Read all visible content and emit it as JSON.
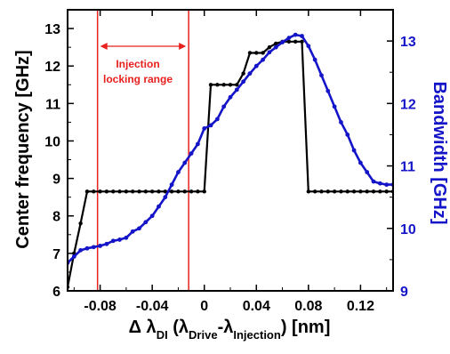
{
  "chart_data": {
    "type": "line",
    "grid": false,
    "legend": "none",
    "xlabel": {
      "prefix": "Δ λ",
      "prefix_sub": "DI",
      "mid1": " (λ",
      "sub1": "Drive",
      "mid2": "-λ",
      "sub2": "Injection",
      "suffix": ") [nm]"
    },
    "ylabel_left": "Center frequency [GHz]",
    "ylabel_right": "Bandwidth [GHz]",
    "xlim": [
      -0.105,
      0.145
    ],
    "ylim_left": [
      6,
      13.5
    ],
    "ylim_right": [
      9,
      13.5
    ],
    "x_ticks": [
      -0.08,
      -0.04,
      0,
      0.04,
      0.08,
      0.12
    ],
    "x_tick_labels": [
      "-0.08",
      "-0.04",
      "0",
      "0.04",
      "0.08",
      "0.12"
    ],
    "y_left_ticks": [
      6,
      7,
      8,
      9,
      10,
      11,
      12,
      13
    ],
    "y_left_tick_labels": [
      "6",
      "7",
      "8",
      "9",
      "10",
      "11",
      "12",
      "13"
    ],
    "y_right_ticks": [
      9,
      10,
      11,
      12,
      13
    ],
    "y_right_tick_labels": [
      "9",
      "10",
      "11",
      "12",
      "13"
    ],
    "colors": {
      "left_series": "#000000",
      "right_series": "#1414c8",
      "annotation": "#e8201e",
      "axes": "#000000"
    },
    "annotation": {
      "label_line1": "Injection",
      "label_line2": "locking range",
      "range": [
        -0.082,
        -0.012
      ]
    },
    "series": [
      {
        "axis": "left",
        "x": [
          -0.105,
          -0.1,
          -0.095,
          -0.09,
          -0.085,
          -0.08,
          -0.075,
          -0.07,
          -0.065,
          -0.06,
          -0.055,
          -0.05,
          -0.045,
          -0.04,
          -0.035,
          -0.03,
          -0.025,
          -0.02,
          -0.015,
          -0.01,
          -0.005,
          0,
          0.005,
          0.01,
          0.015,
          0.02,
          0.025,
          0.03,
          0.035,
          0.04,
          0.045,
          0.05,
          0.055,
          0.06,
          0.065,
          0.07,
          0.075,
          0.08,
          0.085,
          0.09,
          0.095,
          0.1,
          0.105,
          0.11,
          0.115,
          0.12,
          0.125,
          0.13,
          0.135,
          0.14,
          0.145
        ],
        "values": [
          6.1,
          7.0,
          7.8,
          8.65,
          8.65,
          8.65,
          8.65,
          8.65,
          8.65,
          8.65,
          8.65,
          8.65,
          8.65,
          8.65,
          8.65,
          8.65,
          8.65,
          8.65,
          8.65,
          8.65,
          8.65,
          8.65,
          11.5,
          11.5,
          11.5,
          11.5,
          11.5,
          11.8,
          12.35,
          12.35,
          12.35,
          12.5,
          12.6,
          12.65,
          12.65,
          12.65,
          12.65,
          8.65,
          8.65,
          8.65,
          8.65,
          8.65,
          8.65,
          8.65,
          8.65,
          8.65,
          8.65,
          8.65,
          8.65,
          8.65,
          8.65
        ]
      },
      {
        "axis": "right",
        "x": [
          -0.105,
          -0.1,
          -0.095,
          -0.09,
          -0.085,
          -0.08,
          -0.075,
          -0.07,
          -0.065,
          -0.06,
          -0.055,
          -0.05,
          -0.045,
          -0.04,
          -0.035,
          -0.03,
          -0.025,
          -0.02,
          -0.015,
          -0.01,
          -0.005,
          0,
          0.005,
          0.01,
          0.015,
          0.02,
          0.025,
          0.03,
          0.035,
          0.04,
          0.045,
          0.05,
          0.055,
          0.06,
          0.065,
          0.07,
          0.075,
          0.08,
          0.085,
          0.09,
          0.095,
          0.1,
          0.105,
          0.11,
          0.115,
          0.12,
          0.125,
          0.13,
          0.135,
          0.14,
          0.145
        ],
        "values": [
          9.45,
          9.55,
          9.65,
          9.68,
          9.7,
          9.72,
          9.75,
          9.8,
          9.82,
          9.85,
          9.95,
          10.0,
          10.1,
          10.2,
          10.35,
          10.5,
          10.7,
          10.9,
          11.05,
          11.2,
          11.35,
          11.6,
          11.65,
          11.75,
          11.95,
          12.1,
          12.22,
          12.35,
          12.48,
          12.6,
          12.7,
          12.82,
          12.9,
          12.98,
          13.05,
          13.1,
          13.08,
          12.92,
          12.7,
          12.45,
          12.2,
          11.95,
          11.7,
          11.5,
          11.25,
          11.05,
          10.9,
          10.75,
          10.72,
          10.7,
          10.7
        ]
      }
    ]
  }
}
